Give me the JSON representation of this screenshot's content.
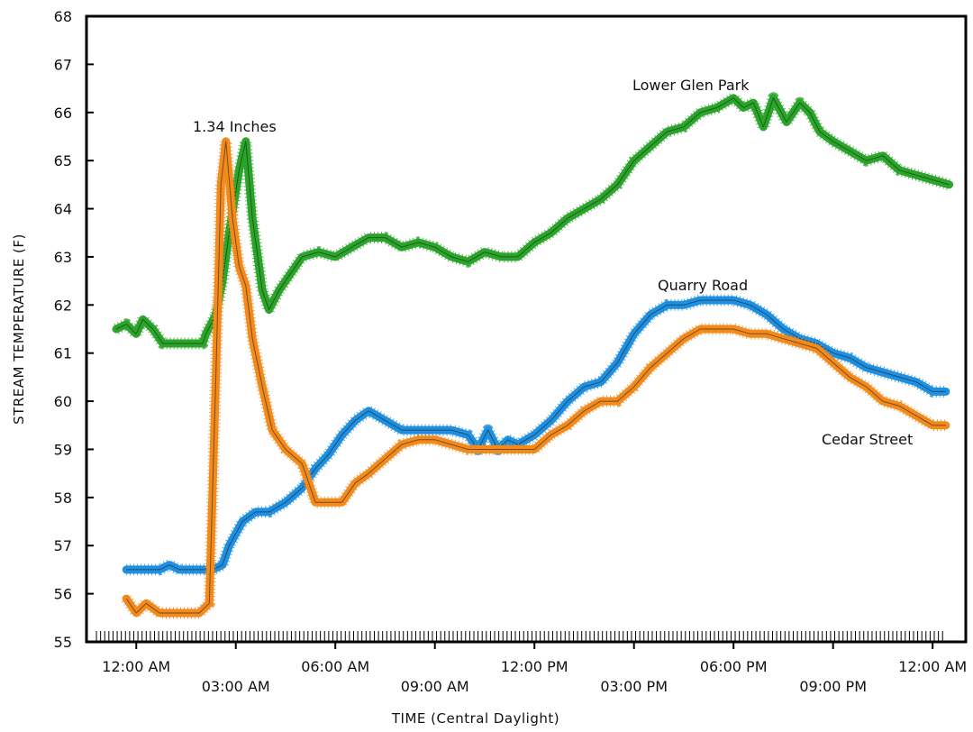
{
  "chart_data": {
    "type": "line",
    "title": "",
    "xlabel": "TIME (Central Daylight)",
    "ylabel": "STREAM TEMPERATURE (F)",
    "ylim": [
      55,
      68
    ],
    "xlim": [
      -1.5,
      25
    ],
    "grid": false,
    "y_ticks": [
      55,
      56,
      57,
      58,
      59,
      60,
      61,
      62,
      63,
      64,
      65,
      66,
      67,
      68
    ],
    "x_ticks": [
      {
        "hour": 0,
        "label": "12:00 AM",
        "row": "upper"
      },
      {
        "hour": 3,
        "label": "03:00 AM",
        "row": "lower"
      },
      {
        "hour": 6,
        "label": "06:00 AM",
        "row": "upper"
      },
      {
        "hour": 9,
        "label": "09:00 AM",
        "row": "lower"
      },
      {
        "hour": 12,
        "label": "12:00 PM",
        "row": "upper"
      },
      {
        "hour": 15,
        "label": "03:00 PM",
        "row": "lower"
      },
      {
        "hour": 18,
        "label": "06:00 PM",
        "row": "upper"
      },
      {
        "hour": 21,
        "label": "09:00 PM",
        "row": "lower"
      },
      {
        "hour": 24,
        "label": "12:00 AM",
        "row": "upper"
      }
    ],
    "series": [
      {
        "name": "Lower Glen Park",
        "color": "#2aa52a",
        "x": [
          -0.6,
          -0.3,
          0,
          0.2,
          0.5,
          0.8,
          1.5,
          2.0,
          2.1,
          2.4,
          2.6,
          2.8,
          3.1,
          3.3,
          3.5,
          3.8,
          4.0,
          4.3,
          4.7,
          5.0,
          5.5,
          6.0,
          6.5,
          7.0,
          7.5,
          8.0,
          8.5,
          9.0,
          9.5,
          10.0,
          10.5,
          11.0,
          11.5,
          12.0,
          12.5,
          13.0,
          13.5,
          14.0,
          14.5,
          15.0,
          15.5,
          16.0,
          16.5,
          17.0,
          17.5,
          18.0,
          18.3,
          18.6,
          18.9,
          19.2,
          19.6,
          20.0,
          20.3,
          20.6,
          21.0,
          21.5,
          22.0,
          22.5,
          23.0,
          23.5,
          24.0,
          24.5
        ],
        "y": [
          61.5,
          61.6,
          61.4,
          61.7,
          61.5,
          61.2,
          61.2,
          61.2,
          61.4,
          61.8,
          62.5,
          63.5,
          64.8,
          65.4,
          63.8,
          62.3,
          61.9,
          62.3,
          62.7,
          63.0,
          63.1,
          63.0,
          63.2,
          63.4,
          63.4,
          63.2,
          63.3,
          63.2,
          63.0,
          62.9,
          63.1,
          63.0,
          63.0,
          63.3,
          63.5,
          63.8,
          64.0,
          64.2,
          64.5,
          65.0,
          65.3,
          65.6,
          65.7,
          66.0,
          66.1,
          66.3,
          66.1,
          66.2,
          65.7,
          66.3,
          65.8,
          66.2,
          66.0,
          65.6,
          65.4,
          65.2,
          65.0,
          65.1,
          64.8,
          64.7,
          64.6,
          64.5
        ]
      },
      {
        "name": "Quarry Road",
        "color": "#1f8fe0",
        "x": [
          -0.3,
          0,
          0.3,
          0.7,
          1.0,
          1.3,
          1.8,
          2.3,
          2.6,
          2.8,
          3.2,
          3.6,
          4.0,
          4.5,
          5.0,
          5.4,
          5.8,
          6.2,
          6.6,
          7.0,
          7.5,
          8.0,
          8.5,
          9.0,
          9.5,
          10.0,
          10.3,
          10.6,
          10.9,
          11.2,
          11.5,
          12.0,
          12.5,
          13.0,
          13.5,
          14.0,
          14.5,
          15.0,
          15.5,
          16.0,
          16.5,
          17.0,
          17.5,
          18.0,
          18.5,
          19.0,
          19.5,
          20.0,
          20.5,
          21.0,
          21.5,
          22.0,
          22.5,
          23.0,
          23.5,
          24.0,
          24.4
        ],
        "y": [
          56.5,
          56.5,
          56.5,
          56.5,
          56.6,
          56.5,
          56.5,
          56.5,
          56.6,
          57.0,
          57.5,
          57.7,
          57.7,
          57.9,
          58.2,
          58.6,
          58.9,
          59.3,
          59.6,
          59.8,
          59.6,
          59.4,
          59.4,
          59.4,
          59.4,
          59.3,
          59.0,
          59.4,
          59.0,
          59.2,
          59.1,
          59.3,
          59.6,
          60.0,
          60.3,
          60.4,
          60.8,
          61.4,
          61.8,
          62.0,
          62.0,
          62.1,
          62.1,
          62.1,
          62.0,
          61.8,
          61.5,
          61.3,
          61.2,
          61.0,
          60.9,
          60.7,
          60.6,
          60.5,
          60.4,
          60.2,
          60.2
        ]
      },
      {
        "name": "Cedar Street",
        "color": "#f28a1c",
        "x": [
          -0.3,
          0,
          0.3,
          0.7,
          1.0,
          1.5,
          1.9,
          2.2,
          2.4,
          2.55,
          2.7,
          2.9,
          3.1,
          3.3,
          3.5,
          3.8,
          4.1,
          4.5,
          5.0,
          5.4,
          5.8,
          6.2,
          6.6,
          7.0,
          7.5,
          8.0,
          8.5,
          9.0,
          9.5,
          10.0,
          10.5,
          11.0,
          11.5,
          12.0,
          12.5,
          13.0,
          13.5,
          14.0,
          14.5,
          15.0,
          15.5,
          16.0,
          16.5,
          17.0,
          17.5,
          18.0,
          18.5,
          19.0,
          19.5,
          20.0,
          20.5,
          21.0,
          21.5,
          22.0,
          22.5,
          23.0,
          23.5,
          24.0,
          24.4
        ],
        "y": [
          55.9,
          55.6,
          55.8,
          55.6,
          55.6,
          55.6,
          55.6,
          55.8,
          60.5,
          64.5,
          65.4,
          63.8,
          62.8,
          62.4,
          61.3,
          60.3,
          59.4,
          59.0,
          58.7,
          57.9,
          57.9,
          57.9,
          58.3,
          58.5,
          58.8,
          59.1,
          59.2,
          59.2,
          59.1,
          59.0,
          59.0,
          59.0,
          59.0,
          59.0,
          59.3,
          59.5,
          59.8,
          60.0,
          60.0,
          60.3,
          60.7,
          61.0,
          61.3,
          61.5,
          61.5,
          61.5,
          61.4,
          61.4,
          61.3,
          61.2,
          61.1,
          60.8,
          60.5,
          60.3,
          60.0,
          59.9,
          59.7,
          59.5,
          59.5
        ]
      }
    ]
  },
  "annotations": {
    "rain": "1.34 Inches",
    "lower_glen_park": "Lower Glen Park",
    "quarry_road": "Quarry Road",
    "cedar_street": "Cedar Street"
  }
}
